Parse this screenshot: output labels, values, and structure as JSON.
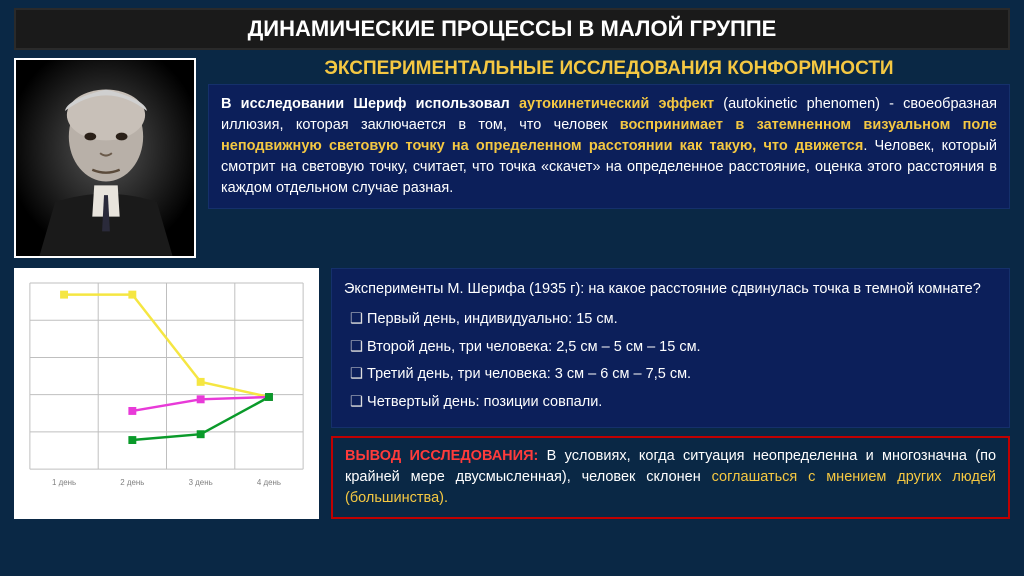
{
  "title": "ДИНАМИЧЕСКИЕ ПРОЦЕССЫ В МАЛОЙ ГРУППЕ",
  "subtitle": "ЭКСПЕРИМЕНТАЛЬНЫЕ ИССЛЕДОВАНИЯ КОНФОРМНОСТИ",
  "desc": {
    "p1a": "В исследовании Шериф использовал ",
    "p1b": "аутокинетический эффект",
    "p1c": " (autokinetic phenomen) - своеобразная иллюзия, которая заключается в том, что человек ",
    "p1d": "воспринимает в затемненном визуальном поле неподвижную световую точку на определенном расстоянии как такую, что движется",
    "p1e": ". Человек, который смотрит на световую точку, считает, что точка «скачет» на определенное расстояние, оценка этого расстояния в каждом отдельном случае разная."
  },
  "exp": {
    "q": "Эксперименты М. Шерифа (1935 г): на какое расстояние сдвинулась точка в темной комнате?",
    "b1": "Первый день, индивидуально: 15 см.",
    "b2": "Второй день, три человека: 2,5 см – 5 см – 15 см.",
    "b3": "Третий день, три человека:   3 см – 6 см – 7,5 см.",
    "b4": "Четвертый день: позиции совпали."
  },
  "concl": {
    "lead": "ВЫВОД ИССЛЕДОВАНИЯ:",
    "t1": " В условиях, когда ситуация неопределенна и многозначна (по крайней мере двусмысленная), человек склонен ",
    "t2": "соглашаться с мнением других людей (большинства)."
  },
  "chart": {
    "type": "line",
    "x_labels": [
      "1 день",
      "2 день",
      "3 день",
      "4 день"
    ],
    "series": [
      {
        "name": "yellow",
        "color": "#f5e642",
        "marker": "square",
        "values": [
          15,
          15,
          7.5,
          6.2
        ]
      },
      {
        "name": "magenta",
        "color": "#e83ad8",
        "marker": "square",
        "values": [
          null,
          5,
          6,
          6.2
        ]
      },
      {
        "name": "green",
        "color": "#0a9a2a",
        "marker": "square",
        "values": [
          null,
          2.5,
          3,
          6.2
        ]
      }
    ],
    "ylim": [
      0,
      16
    ],
    "grid_color": "#bfbfbf",
    "background": "#ffffff",
    "line_width": 2.5,
    "marker_size": 7,
    "label_fontsize": 8,
    "label_color": "#808080"
  },
  "colors": {
    "slide_bg": "#0a2845",
    "title_bg": "#1a1a1a",
    "box_bg": "#0c1f5a",
    "accent_yellow": "#f5c842",
    "accent_red": "#ff3b3b",
    "concl_border": "#c00000"
  }
}
